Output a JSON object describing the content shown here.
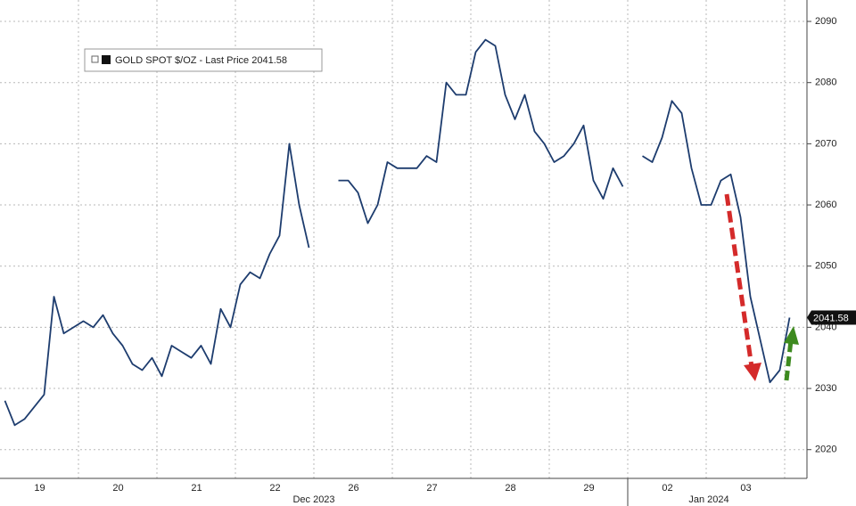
{
  "chart_data": {
    "type": "line",
    "categories": [
      null,
      null,
      null,
      null,
      "19",
      null,
      null,
      null,
      null,
      null,
      null,
      null,
      "20",
      null,
      null,
      null,
      null,
      null,
      null,
      null,
      "21",
      null,
      null,
      null,
      null,
      null,
      null,
      null,
      "22",
      null,
      null,
      null,
      null,
      null,
      null,
      null,
      "26",
      null,
      null,
      null,
      null,
      null,
      null,
      null,
      "27",
      null,
      null,
      null,
      null,
      null,
      null,
      null,
      "28",
      null,
      null,
      null,
      null,
      null,
      null,
      null,
      "29",
      null,
      null,
      null,
      null,
      null,
      null,
      null,
      "02",
      null,
      null,
      null,
      null,
      null,
      null,
      null,
      "03",
      null,
      null,
      null,
      null
    ],
    "group_labels": [
      "Dec 2023",
      "Jan 2024"
    ],
    "series": [
      {
        "name": "GOLD SPOT $/OZ - Last Price 2041.58",
        "color": "#1d3c6e",
        "values": [
          2028,
          2024,
          2025,
          2027,
          2029,
          2045,
          2039,
          2040,
          2041,
          2040,
          2042,
          2039,
          2037,
          2034,
          2033,
          2035,
          2032,
          2037,
          2036,
          2035,
          2037,
          2034,
          2043,
          2040,
          2047,
          2049,
          2048,
          2052,
          2055,
          2070,
          2060,
          2053,
          null,
          null,
          2064,
          2064,
          2062,
          2057,
          2060,
          2067,
          2066,
          2066,
          2066,
          2068,
          2067,
          2080,
          2078,
          2078,
          2085,
          2087,
          2086,
          2078,
          2074,
          2078,
          2072,
          2070,
          2067,
          2068,
          2070,
          2073,
          2064,
          2061,
          2066,
          2063,
          null,
          2068,
          2067,
          2071,
          2077,
          2075,
          2066,
          2060,
          2060,
          2064,
          2065,
          2058,
          2045,
          2038,
          2031,
          2033,
          2041.58
        ]
      }
    ],
    "last_value": {
      "value": 2041.58,
      "label": "2041.58"
    },
    "ylim": [
      2015.3,
      2093.5
    ],
    "yticks": [
      2020,
      2030,
      2040,
      2050,
      2060,
      2070,
      2080,
      2090
    ],
    "grid": true
  }
}
